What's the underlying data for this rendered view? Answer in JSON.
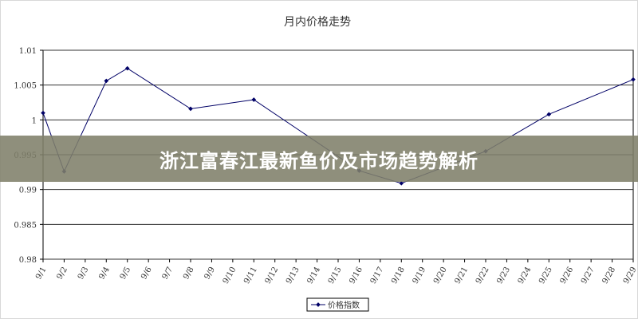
{
  "banner": {
    "title": "浙江富春江最新鱼价及市场趋势解析"
  },
  "chart_data": {
    "type": "line",
    "title": "月内价格走势",
    "xlabel": "",
    "ylabel": "",
    "categories": [
      "9/1",
      "9/2",
      "9/3",
      "9/4",
      "9/5",
      "9/6",
      "9/7",
      "9/8",
      "9/9",
      "9/10",
      "9/11",
      "9/12",
      "9/13",
      "9/14",
      "9/15",
      "9/16",
      "9/17",
      "9/18",
      "9/19",
      "9/20",
      "9/21",
      "9/22",
      "9/23",
      "9/24",
      "9/25",
      "9/26",
      "9/27",
      "9/28",
      "9/29"
    ],
    "ylim": [
      0.98,
      1.01
    ],
    "yticks": [
      "0.98",
      "0.985",
      "0.99",
      "0.995",
      "1",
      "1.005",
      "1.01"
    ],
    "grid": true,
    "legend_position": "bottom",
    "series": [
      {
        "name": "价格指数",
        "color": "#000066",
        "points": [
          [
            "9/1",
            1.001
          ],
          [
            "9/2",
            0.9926
          ],
          [
            "9/4",
            1.0056
          ],
          [
            "9/5",
            1.0074
          ],
          [
            "9/8",
            1.0016
          ],
          [
            "9/11",
            1.0029
          ],
          [
            "9/16",
            0.9927
          ],
          [
            "9/18",
            0.9909
          ],
          [
            "9/22",
            0.9955
          ],
          [
            "9/25",
            1.0008
          ],
          [
            "9/29",
            1.0058
          ]
        ]
      }
    ]
  }
}
